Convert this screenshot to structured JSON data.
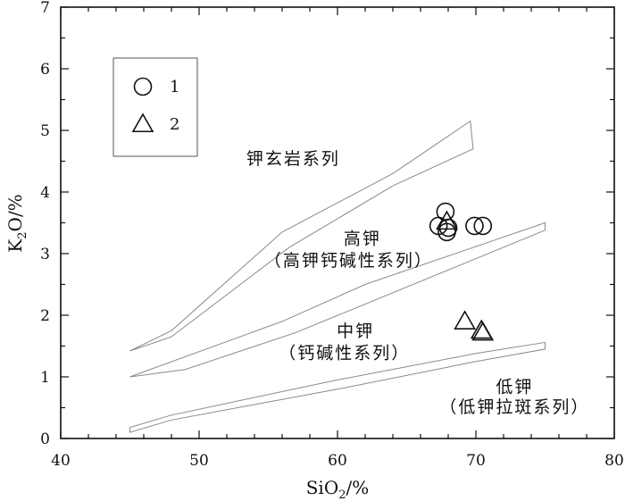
{
  "chart_data": {
    "type": "scatter",
    "title": "",
    "x_axis": {
      "label_main": "SiO",
      "label_sub": "2",
      "label_tail": "/%",
      "range": [
        40,
        80
      ],
      "ticks": [
        40,
        50,
        60,
        70,
        80
      ],
      "tick_labels": [
        "40",
        "50",
        "60",
        "70",
        "80"
      ]
    },
    "y_axis": {
      "label_main": "K",
      "label_sub": "2",
      "label_tail": "O/%",
      "range": [
        0,
        7
      ],
      "ticks": [
        0,
        1,
        2,
        3,
        4,
        5,
        6,
        7
      ],
      "tick_labels": [
        "0",
        "1",
        "2",
        "3",
        "4",
        "5",
        "6",
        "7"
      ]
    },
    "grid": false,
    "legend_position": "top-left",
    "legend": [
      {
        "symbol": "circle",
        "label": "1"
      },
      {
        "symbol": "triangle",
        "label": "2"
      }
    ],
    "series": [
      {
        "name": "1",
        "symbol": "circle",
        "points": [
          {
            "x": 67.8,
            "y": 3.68
          },
          {
            "x": 67.3,
            "y": 3.45
          },
          {
            "x": 68.0,
            "y": 3.42
          },
          {
            "x": 67.9,
            "y": 3.35
          },
          {
            "x": 69.9,
            "y": 3.45
          },
          {
            "x": 70.5,
            "y": 3.45
          }
        ]
      },
      {
        "name": "2",
        "symbol": "triangle",
        "points": [
          {
            "x": 67.9,
            "y": 3.52
          },
          {
            "x": 69.2,
            "y": 1.9
          },
          {
            "x": 70.4,
            "y": 1.75
          },
          {
            "x": 70.5,
            "y": 1.72
          }
        ]
      }
    ],
    "boundaries": [
      {
        "upper": [
          [
            45,
            1.42
          ],
          [
            48,
            1.75
          ],
          [
            56,
            3.35
          ],
          [
            64,
            4.3
          ],
          [
            69.6,
            5.15
          ]
        ],
        "lower": [
          [
            45,
            1.42
          ],
          [
            48,
            1.65
          ],
          [
            56.5,
            3.1
          ],
          [
            64,
            4.1
          ],
          [
            69.8,
            4.7
          ]
        ],
        "closed_end": true
      },
      {
        "upper": [
          [
            45,
            1.0
          ],
          [
            56,
            1.9
          ],
          [
            62,
            2.5
          ],
          [
            75,
            3.5
          ]
        ],
        "lower": [
          [
            45,
            1.0
          ],
          [
            49,
            1.12
          ],
          [
            57,
            1.72
          ],
          [
            75,
            3.38
          ]
        ],
        "closed_end": true
      },
      {
        "upper": [
          [
            45,
            0.18
          ],
          [
            48,
            0.38
          ],
          [
            60,
            0.95
          ],
          [
            70,
            1.38
          ],
          [
            75,
            1.56
          ]
        ],
        "lower": [
          [
            45,
            0.1
          ],
          [
            48,
            0.3
          ],
          [
            60,
            0.8
          ],
          [
            70,
            1.25
          ],
          [
            75,
            1.45
          ]
        ],
        "closed_end": true
      }
    ],
    "region_labels": [
      {
        "id": "shoshonite",
        "text": "钾玄岩系列",
        "x": 56.8,
        "y": 4.45
      },
      {
        "id": "high-k",
        "text": "高钾",
        "x": 61.8,
        "y": 3.15
      },
      {
        "id": "high-k-sub",
        "text": "（高钾钙碱性系列）",
        "x": 60.8,
        "y": 2.8
      },
      {
        "id": "medium-k",
        "text": "中钾",
        "x": 61.3,
        "y": 1.65
      },
      {
        "id": "medium-k-sub",
        "text": "（钙碱性系列）",
        "x": 60.5,
        "y": 1.3
      },
      {
        "id": "low-k",
        "text": "低钾",
        "x": 72.8,
        "y": 0.75
      },
      {
        "id": "low-k-sub",
        "text": "（低钾拉斑系列）",
        "x": 72.8,
        "y": 0.42
      }
    ]
  }
}
